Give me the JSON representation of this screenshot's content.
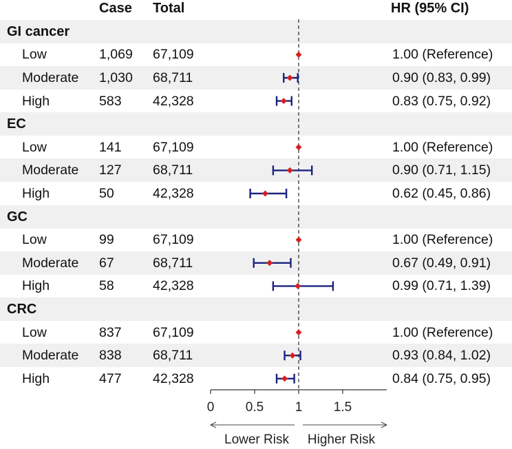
{
  "chart_data": {
    "type": "forest",
    "headers": {
      "case": "Case",
      "total": "Total",
      "hr": "HR (95% CI)"
    },
    "groups": [
      {
        "name": "GI cancer",
        "rows": [
          {
            "level": "Low",
            "case": "1,069",
            "total": "67,109",
            "hr": 1.0,
            "lo": 1.0,
            "hi": 1.0,
            "label": "1.00 (Reference)"
          },
          {
            "level": "Moderate",
            "case": "1,030",
            "total": "68,711",
            "hr": 0.9,
            "lo": 0.83,
            "hi": 0.99,
            "label": "0.90 (0.83, 0.99)"
          },
          {
            "level": "High",
            "case": "583",
            "total": "42,328",
            "hr": 0.83,
            "lo": 0.75,
            "hi": 0.92,
            "label": "0.83 (0.75, 0.92)"
          }
        ]
      },
      {
        "name": "EC",
        "rows": [
          {
            "level": "Low",
            "case": "141",
            "total": "67,109",
            "hr": 1.0,
            "lo": 1.0,
            "hi": 1.0,
            "label": "1.00 (Reference)"
          },
          {
            "level": "Moderate",
            "case": "127",
            "total": "68,711",
            "hr": 0.9,
            "lo": 0.71,
            "hi": 1.15,
            "label": "0.90 (0.71, 1.15)"
          },
          {
            "level": "High",
            "case": "50",
            "total": "42,328",
            "hr": 0.62,
            "lo": 0.45,
            "hi": 0.86,
            "label": "0.62 (0.45, 0.86)"
          }
        ]
      },
      {
        "name": "GC",
        "rows": [
          {
            "level": "Low",
            "case": "99",
            "total": "67,109",
            "hr": 1.0,
            "lo": 1.0,
            "hi": 1.0,
            "label": "1.00 (Reference)"
          },
          {
            "level": "Moderate",
            "case": "67",
            "total": "68,711",
            "hr": 0.67,
            "lo": 0.49,
            "hi": 0.91,
            "label": "0.67 (0.49, 0.91)"
          },
          {
            "level": "High",
            "case": "58",
            "total": "42,328",
            "hr": 0.99,
            "lo": 0.71,
            "hi": 1.39,
            "label": "0.99 (0.71, 1.39)"
          }
        ]
      },
      {
        "name": "CRC",
        "rows": [
          {
            "level": "Low",
            "case": "837",
            "total": "67,109",
            "hr": 1.0,
            "lo": 1.0,
            "hi": 1.0,
            "label": "1.00 (Reference)"
          },
          {
            "level": "Moderate",
            "case": "838",
            "total": "68,711",
            "hr": 0.93,
            "lo": 0.84,
            "hi": 1.02,
            "label": "0.93 (0.84, 1.02)"
          },
          {
            "level": "High",
            "case": "477",
            "total": "42,328",
            "hr": 0.84,
            "lo": 0.75,
            "hi": 0.95,
            "label": "0.84 (0.75, 0.95)"
          }
        ]
      }
    ],
    "x_axis": {
      "ticks": [
        0,
        0.5,
        1,
        1.5
      ],
      "tick_labels": [
        "0",
        "0.5",
        "1",
        "1.5"
      ],
      "range": [
        0,
        2.0
      ],
      "reference": 1
    },
    "direction_labels": {
      "left": "Lower Risk",
      "right": "Higher Risk"
    },
    "colors": {
      "ci": "#1a237e",
      "point": "#d62020",
      "band": "#f0f0f0",
      "axis": "#333333"
    }
  }
}
